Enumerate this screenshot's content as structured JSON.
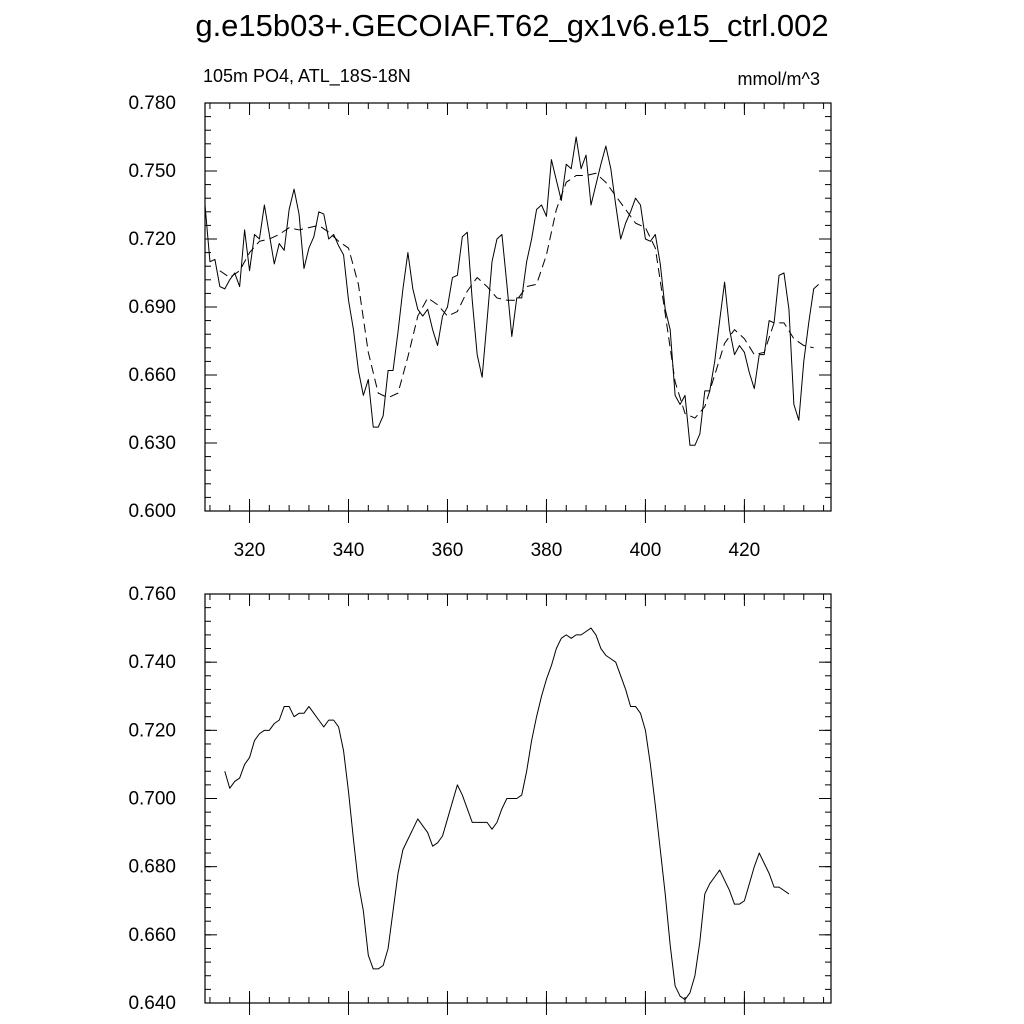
{
  "chart_data": [
    {
      "type": "line",
      "title": "g.e15b03+.GECOIAF.T62_gx1v6.e15_ctrl.002",
      "left_label": "105m PO4, ATL_18S-18N",
      "right_label": "mmol/m^3",
      "xlim": [
        311,
        437.5
      ],
      "xticks": [
        320,
        340,
        360,
        380,
        400,
        420
      ],
      "xtick_labels": true,
      "ylim": [
        0.6,
        0.78
      ],
      "yticks": [
        {
          "value": 0.6,
          "label": "0.600"
        },
        {
          "value": 0.63,
          "label": "0.630"
        },
        {
          "value": 0.66,
          "label": "0.660"
        },
        {
          "value": 0.69,
          "label": "0.690"
        },
        {
          "value": 0.72,
          "label": "0.720"
        },
        {
          "value": 0.75,
          "label": "0.750"
        },
        {
          "value": 0.78,
          "label": "0.780"
        }
      ],
      "series": [
        {
          "color": "#000000",
          "style": "solid",
          "x": [
            311,
            312,
            313,
            314,
            315,
            316,
            317,
            318,
            319,
            320,
            321,
            322,
            323,
            324,
            325,
            326,
            327,
            328,
            329,
            330,
            331,
            332,
            333,
            334,
            335,
            336,
            337,
            338,
            339,
            340,
            341,
            342,
            343,
            344,
            345,
            346,
            347,
            348,
            349,
            350,
            351,
            352,
            353,
            354,
            355,
            356,
            357,
            358,
            359,
            360,
            361,
            362,
            363,
            364,
            365,
            366,
            367,
            368,
            369,
            370,
            371,
            372,
            373,
            374,
            375,
            376,
            377,
            378,
            379,
            380,
            381,
            382,
            383,
            384,
            385,
            386,
            387,
            388,
            389,
            390,
            391,
            392,
            393,
            394,
            395,
            396,
            397,
            398,
            399,
            400,
            401,
            402,
            403,
            404,
            405,
            406,
            407,
            408,
            409,
            410,
            411,
            412,
            413,
            414,
            415,
            416,
            417,
            418,
            419,
            420,
            421,
            422,
            423,
            424,
            425,
            426,
            427,
            428,
            429,
            430,
            431,
            432,
            433,
            434,
            435
          ],
          "values": [
            0.735,
            0.71,
            0.711,
            0.699,
            0.698,
            0.702,
            0.705,
            0.699,
            0.724,
            0.706,
            0.722,
            0.72,
            0.735,
            0.722,
            0.709,
            0.718,
            0.715,
            0.733,
            0.742,
            0.731,
            0.707,
            0.716,
            0.721,
            0.732,
            0.731,
            0.72,
            0.722,
            0.717,
            0.713,
            0.693,
            0.68,
            0.662,
            0.651,
            0.658,
            0.637,
            0.637,
            0.642,
            0.662,
            0.662,
            0.679,
            0.698,
            0.714,
            0.698,
            0.689,
            0.686,
            0.689,
            0.68,
            0.673,
            0.686,
            0.69,
            0.703,
            0.704,
            0.721,
            0.723,
            0.693,
            0.669,
            0.659,
            0.684,
            0.71,
            0.72,
            0.722,
            0.7,
            0.677,
            0.694,
            0.694,
            0.71,
            0.72,
            0.733,
            0.735,
            0.73,
            0.755,
            0.746,
            0.737,
            0.753,
            0.751,
            0.765,
            0.751,
            0.757,
            0.735,
            0.744,
            0.753,
            0.761,
            0.751,
            0.735,
            0.72,
            0.727,
            0.732,
            0.738,
            0.735,
            0.72,
            0.719,
            0.722,
            0.709,
            0.689,
            0.68,
            0.651,
            0.647,
            0.651,
            0.629,
            0.629,
            0.634,
            0.653,
            0.653,
            0.666,
            0.684,
            0.701,
            0.68,
            0.669,
            0.673,
            0.67,
            0.661,
            0.654,
            0.669,
            0.669,
            0.684,
            0.683,
            0.704,
            0.705,
            0.689,
            0.647,
            0.64,
            0.666,
            0.683,
            0.698,
            0.7
          ]
        },
        {
          "color": "#000000",
          "style": "dashed",
          "x": [
            314,
            316,
            318,
            320,
            322,
            324,
            326,
            328,
            330,
            332,
            334,
            336,
            338,
            340,
            342,
            344,
            346,
            348,
            350,
            352,
            354,
            356,
            358,
            360,
            362,
            364,
            366,
            368,
            370,
            372,
            374,
            376,
            378,
            380,
            382,
            384,
            386,
            388,
            390,
            392,
            394,
            396,
            398,
            400,
            402,
            404,
            406,
            408,
            410,
            412,
            414,
            416,
            418,
            420,
            422,
            424,
            426,
            428,
            430,
            432,
            434
          ],
          "values": [
            0.706,
            0.703,
            0.706,
            0.714,
            0.719,
            0.72,
            0.722,
            0.725,
            0.724,
            0.725,
            0.726,
            0.723,
            0.719,
            0.716,
            0.7,
            0.67,
            0.652,
            0.65,
            0.652,
            0.668,
            0.686,
            0.694,
            0.691,
            0.686,
            0.688,
            0.697,
            0.703,
            0.699,
            0.694,
            0.693,
            0.693,
            0.699,
            0.7,
            0.713,
            0.733,
            0.745,
            0.748,
            0.748,
            0.749,
            0.745,
            0.739,
            0.733,
            0.727,
            0.725,
            0.716,
            0.687,
            0.657,
            0.643,
            0.641,
            0.646,
            0.66,
            0.674,
            0.68,
            0.676,
            0.669,
            0.67,
            0.683,
            0.683,
            0.676,
            0.673,
            0.672
          ]
        }
      ]
    },
    {
      "type": "line",
      "xlim": [
        311,
        437.5
      ],
      "xticks": [
        320,
        340,
        360,
        380,
        400,
        420
      ],
      "xtick_labels": false,
      "ylim": [
        0.64,
        0.76
      ],
      "yticks": [
        {
          "value": 0.64,
          "label": "0.640"
        },
        {
          "value": 0.66,
          "label": "0.660"
        },
        {
          "value": 0.68,
          "label": "0.680"
        },
        {
          "value": 0.7,
          "label": "0.700"
        },
        {
          "value": 0.72,
          "label": "0.720"
        },
        {
          "value": 0.74,
          "label": "0.740"
        },
        {
          "value": 0.76,
          "label": "0.760"
        }
      ],
      "series": [
        {
          "color": "#000000",
          "style": "solid",
          "x": [
            315,
            316,
            317,
            318,
            319,
            320,
            321,
            322,
            323,
            324,
            325,
            326,
            327,
            328,
            329,
            330,
            331,
            332,
            333,
            334,
            335,
            336,
            337,
            338,
            339,
            340,
            341,
            342,
            343,
            344,
            345,
            346,
            347,
            348,
            349,
            350,
            351,
            352,
            353,
            354,
            355,
            356,
            357,
            358,
            359,
            360,
            361,
            362,
            363,
            364,
            365,
            366,
            367,
            368,
            369,
            370,
            371,
            372,
            373,
            374,
            375,
            376,
            377,
            378,
            379,
            380,
            381,
            382,
            383,
            384,
            385,
            386,
            387,
            388,
            389,
            390,
            391,
            392,
            393,
            394,
            395,
            396,
            397,
            398,
            399,
            400,
            401,
            402,
            403,
            404,
            405,
            406,
            407,
            408,
            409,
            410,
            411,
            412,
            413,
            414,
            415,
            416,
            417,
            418,
            419,
            420,
            421,
            422,
            423,
            424,
            425,
            426,
            427,
            428,
            429
          ],
          "values": [
            0.708,
            0.703,
            0.705,
            0.706,
            0.71,
            0.712,
            0.717,
            0.719,
            0.72,
            0.72,
            0.722,
            0.723,
            0.727,
            0.727,
            0.724,
            0.725,
            0.725,
            0.727,
            0.725,
            0.723,
            0.721,
            0.723,
            0.723,
            0.721,
            0.714,
            0.702,
            0.688,
            0.675,
            0.667,
            0.654,
            0.65,
            0.65,
            0.651,
            0.656,
            0.667,
            0.678,
            0.685,
            0.688,
            0.691,
            0.694,
            0.692,
            0.69,
            0.686,
            0.687,
            0.689,
            0.694,
            0.699,
            0.704,
            0.701,
            0.697,
            0.693,
            0.693,
            0.693,
            0.693,
            0.691,
            0.693,
            0.697,
            0.7,
            0.7,
            0.7,
            0.701,
            0.708,
            0.717,
            0.724,
            0.73,
            0.735,
            0.739,
            0.744,
            0.747,
            0.748,
            0.747,
            0.748,
            0.748,
            0.749,
            0.75,
            0.748,
            0.744,
            0.742,
            0.741,
            0.74,
            0.736,
            0.732,
            0.727,
            0.727,
            0.725,
            0.72,
            0.71,
            0.698,
            0.685,
            0.672,
            0.657,
            0.645,
            0.642,
            0.641,
            0.643,
            0.648,
            0.658,
            0.672,
            0.675,
            0.677,
            0.679,
            0.676,
            0.673,
            0.669,
            0.669,
            0.67,
            0.675,
            0.68,
            0.684,
            0.681,
            0.678,
            0.674,
            0.674,
            0.673,
            0.672
          ]
        }
      ]
    }
  ]
}
